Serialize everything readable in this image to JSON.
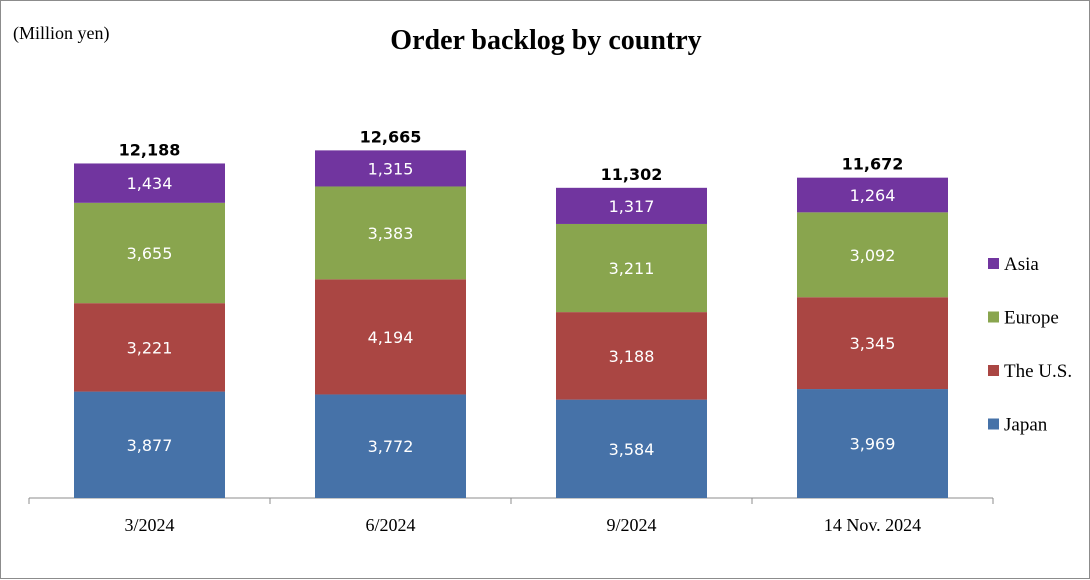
{
  "chart_data": {
    "type": "bar",
    "stacked": true,
    "title": "Order backlog by country",
    "unit_label": "(Million yen)",
    "categories": [
      "3/2024",
      "6/2024",
      "9/2024",
      "14 Nov. 2024"
    ],
    "totals": [
      "12,188",
      "12,665",
      "11,302",
      "11,672"
    ],
    "series": [
      {
        "name": "Japan",
        "color": "#4672a8",
        "values": [
          3877,
          3772,
          3584,
          3969
        ],
        "labels": [
          "3,877",
          "3,772",
          "3,584",
          "3,969"
        ]
      },
      {
        "name": "The U.S.",
        "color": "#aa4643",
        "values": [
          3221,
          4194,
          3188,
          3345
        ],
        "labels": [
          "3,221",
          "4,194",
          "3,188",
          "3,345"
        ]
      },
      {
        "name": "Europe",
        "color": "#89a54e",
        "values": [
          3655,
          3383,
          3211,
          3092
        ],
        "labels": [
          "3,655",
          "3,383",
          "3,211",
          "3,092"
        ]
      },
      {
        "name": "Asia",
        "color": "#71359f",
        "values": [
          1434,
          1315,
          1317,
          1264
        ],
        "labels": [
          "1,434",
          "1,315",
          "1,317",
          "1,264"
        ]
      }
    ],
    "ylim": [
      0,
      13000
    ],
    "grid": false,
    "legend": "right"
  }
}
